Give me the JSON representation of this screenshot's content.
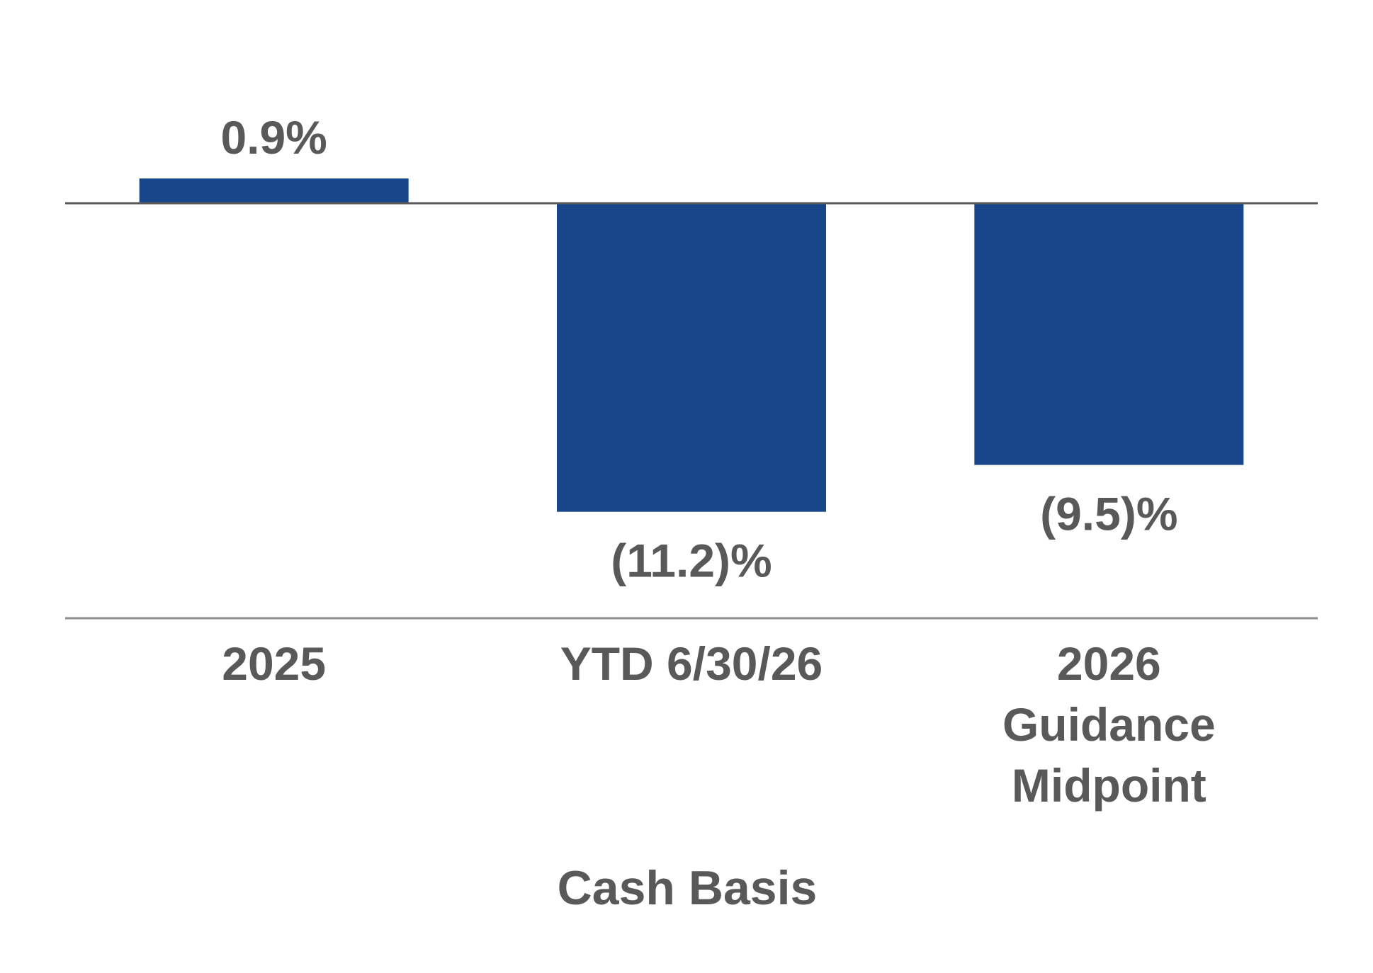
{
  "chart_data": {
    "type": "bar",
    "categories": [
      [
        "2025"
      ],
      [
        "YTD 6/30/26"
      ],
      [
        "2026",
        "Guidance",
        "Midpoint"
      ]
    ],
    "values": [
      0.9,
      -11.2,
      -9.5
    ],
    "value_labels": [
      "0.9%",
      "(11.2)%",
      "(9.5)%"
    ],
    "xlabel": "Cash Basis",
    "ylabel": "",
    "ylim": [
      -15.5,
      6.3
    ],
    "grid": false,
    "legend": "none",
    "colors": {
      "bar": "#17468A",
      "zero_line": "#595959",
      "axis_line": "#8C8C8C",
      "text": "#595959"
    }
  }
}
